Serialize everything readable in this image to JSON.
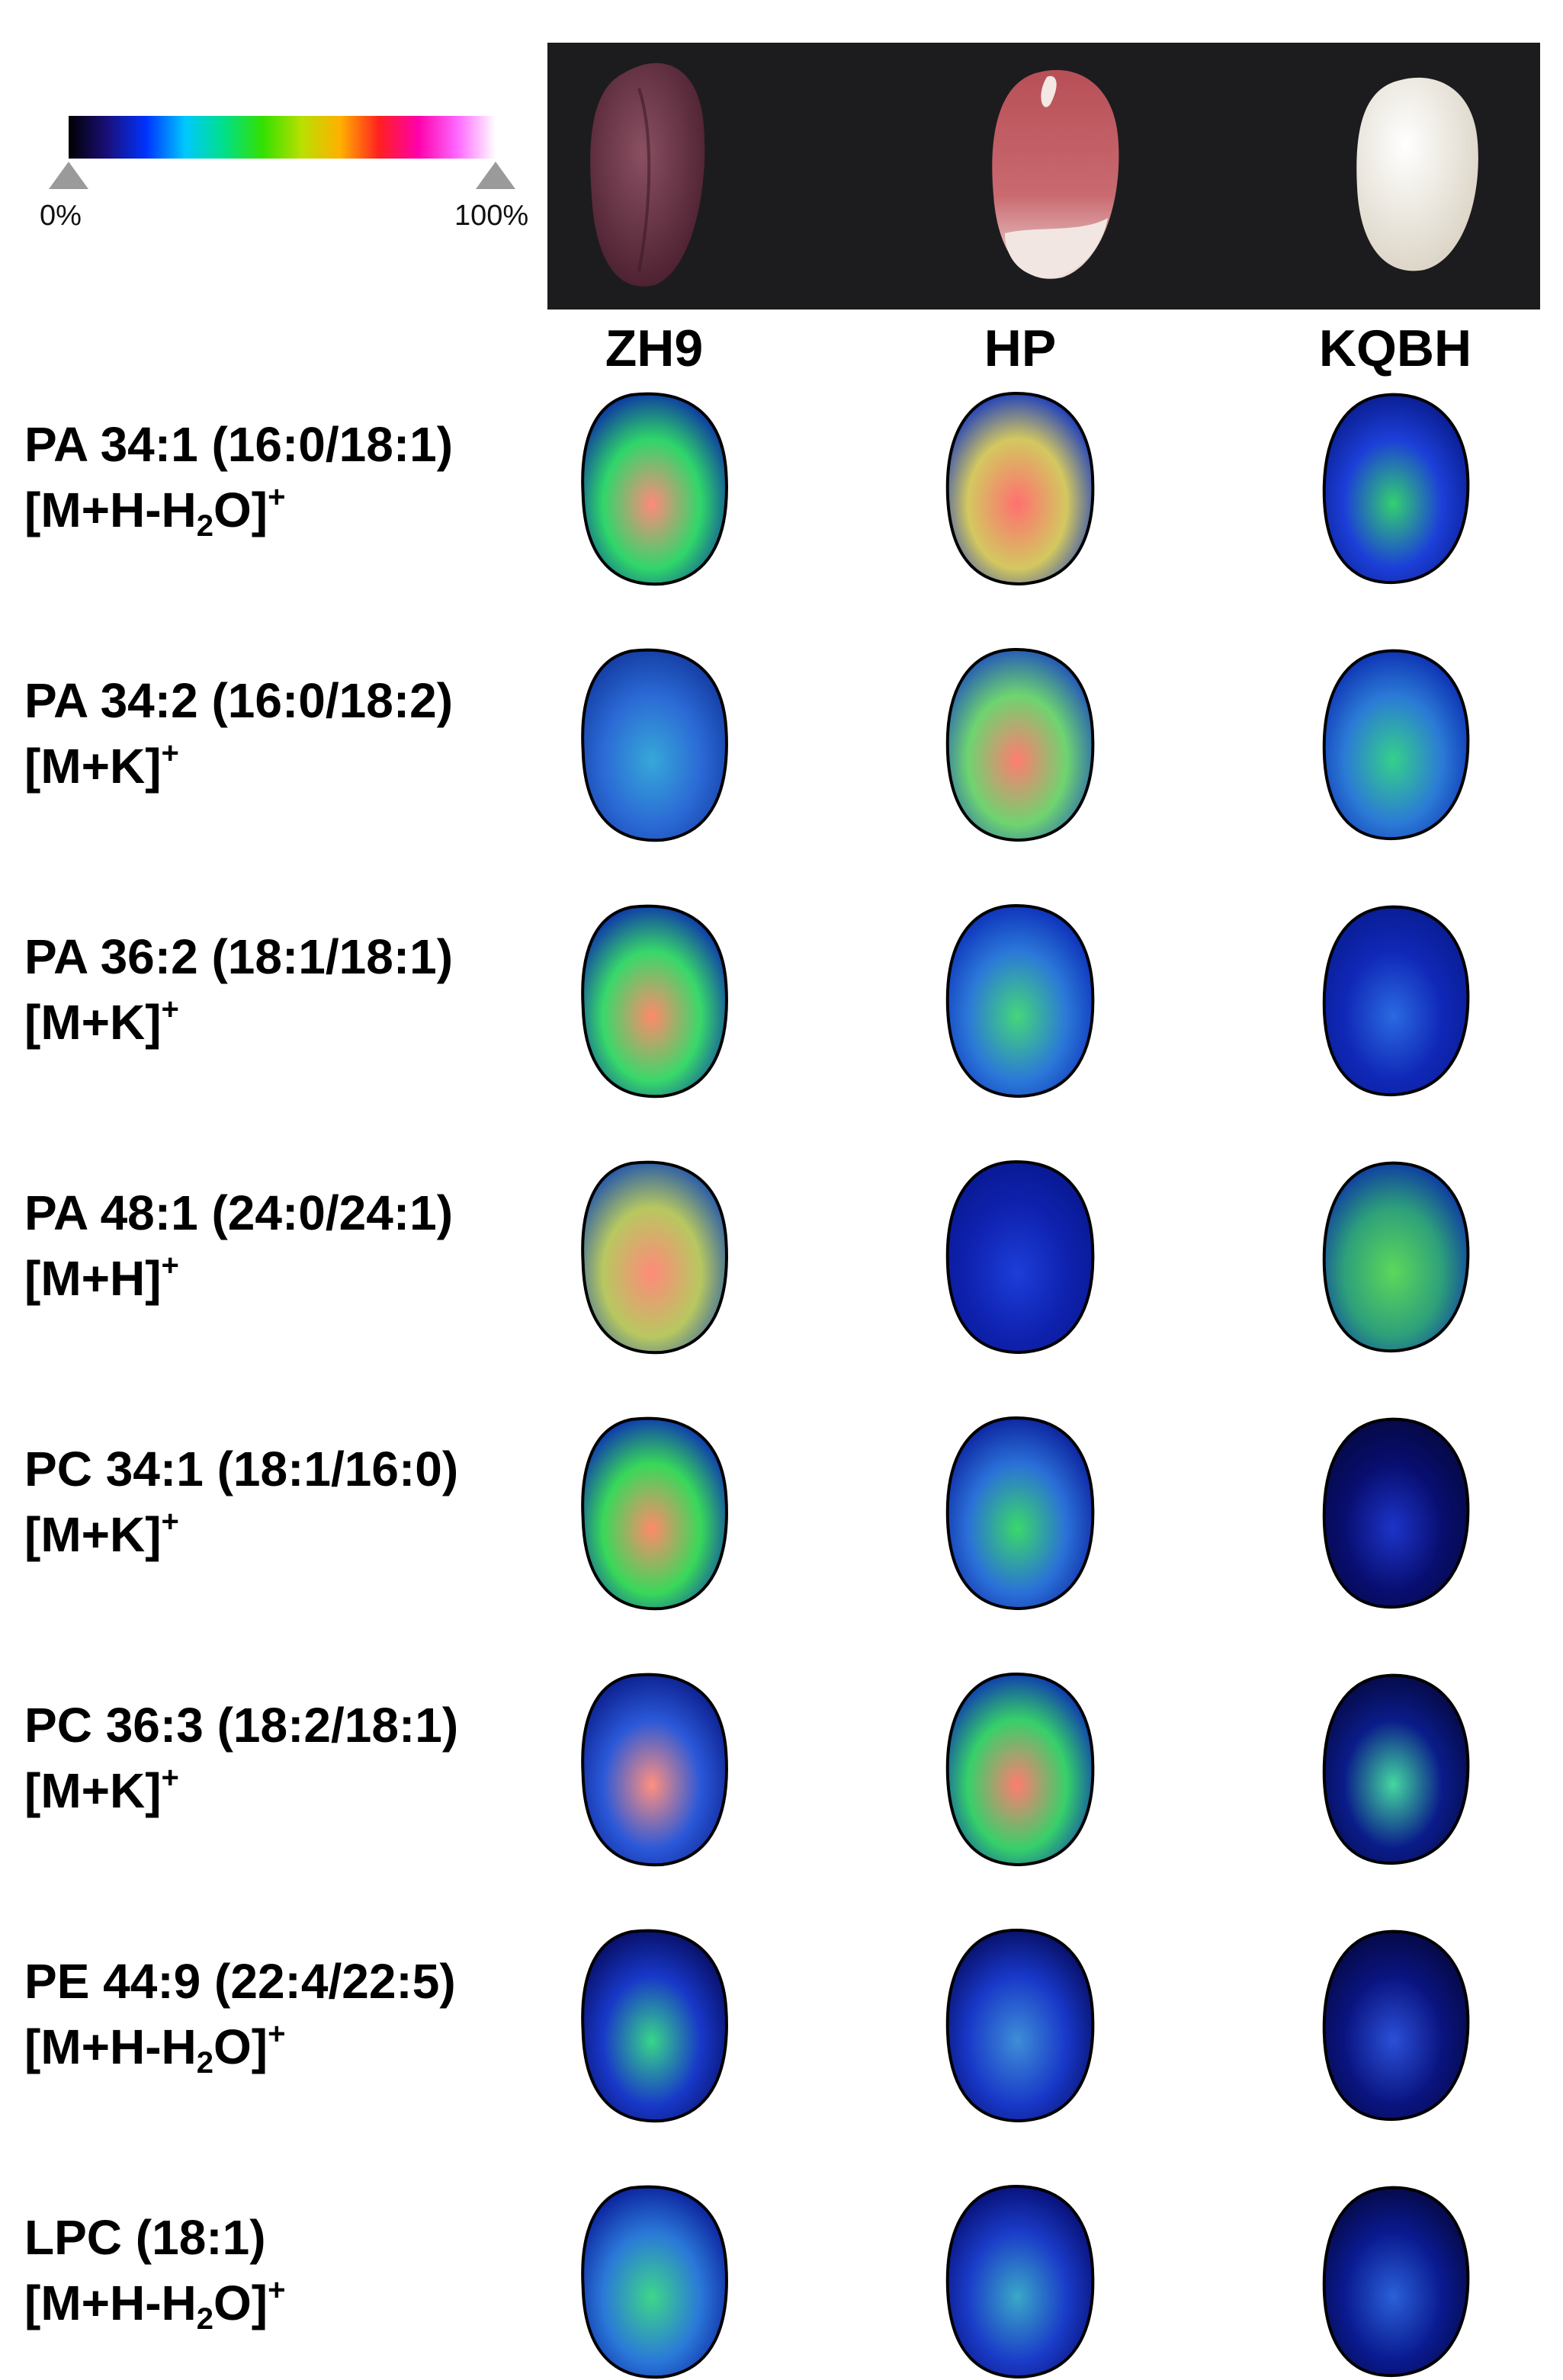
{
  "scale": {
    "min_label": "0%",
    "max_label": "100%",
    "gradient": [
      "#000000",
      "#1a0f7a",
      "#0033ff",
      "#00c8ff",
      "#00e08a",
      "#33e000",
      "#b8e000",
      "#ffb000",
      "#ff2020",
      "#ff00aa",
      "#ff66ff",
      "#ffffff"
    ]
  },
  "photo_seeds": [
    {
      "name": "ZH9",
      "coat": "#6e3346",
      "highlight": "#8a5062",
      "bg": "#1c1c1e"
    },
    {
      "name": "HP",
      "coat": "#c05a60",
      "highlight": "#f2e4e0"
    },
    {
      "name": "KQBH",
      "coat": "#f1ede4",
      "highlight": "#ffffff"
    }
  ],
  "columns": [
    "ZH9",
    "HP",
    "KQBH"
  ],
  "rows": [
    {
      "name": "PA 34:1 (16:0/18:1)",
      "adduct_pre": "[M+H-H",
      "adduct_sub": "2",
      "adduct_post": "O]",
      "adduct_sup": "+",
      "intensity": [
        {
          "c1": "#ff8a7a",
          "c2": "#2fd66a",
          "edge": "#0a2aa8"
        },
        {
          "c1": "#ff7070",
          "c2": "#d3c860",
          "edge": "#0a30c8"
        },
        {
          "c1": "#33d070",
          "c2": "#1c3fd8",
          "edge": "#081a8a"
        }
      ]
    },
    {
      "name": "PA 34:2 (16:0/18:2)",
      "adduct_pre": "[M+K]",
      "adduct_sub": "",
      "adduct_post": "",
      "adduct_sup": "+",
      "intensity": [
        {
          "c1": "#36a8d8",
          "c2": "#2b6ad6",
          "edge": "#123aa0"
        },
        {
          "c1": "#ff7c70",
          "c2": "#6ed470",
          "edge": "#1b4ac0"
        },
        {
          "c1": "#35d08a",
          "c2": "#2b7ad6",
          "edge": "#0a2ab0"
        }
      ]
    },
    {
      "name": "PA 36:2 (18:1/18:1)",
      "adduct_pre": "[M+K]",
      "adduct_sub": "",
      "adduct_post": "",
      "adduct_sup": "+",
      "intensity": [
        {
          "c1": "#ff8a6a",
          "c2": "#38d86a",
          "edge": "#0a2ab0"
        },
        {
          "c1": "#44d67a",
          "c2": "#2b78d8",
          "edge": "#0a2ab8"
        },
        {
          "c1": "#2a6ae0",
          "c2": "#1028b8",
          "edge": "#081c90"
        }
      ]
    },
    {
      "name": "PA 48:1 (24:0/24:1)",
      "adduct_pre": "[M+H]",
      "adduct_sub": "",
      "adduct_post": "",
      "adduct_sup": "+",
      "intensity": [
        {
          "c1": "#ff8a7a",
          "c2": "#b7c860",
          "edge": "#1a50b0"
        },
        {
          "c1": "#1c3ed8",
          "c2": "#0f22b0",
          "edge": "#081890"
        },
        {
          "c1": "#5cd85a",
          "c2": "#2ea07a",
          "edge": "#0a30a8"
        }
      ]
    },
    {
      "name": "PC 34:1 (18:1/16:0)",
      "adduct_pre": "[M+K]",
      "adduct_sub": "",
      "adduct_post": "",
      "adduct_sup": "+",
      "intensity": [
        {
          "c1": "#ff8a6a",
          "c2": "#38d85a",
          "edge": "#0a2ab8"
        },
        {
          "c1": "#3ad86a",
          "c2": "#2a70d8",
          "edge": "#0a1c9a"
        },
        {
          "c1": "#1c34c8",
          "c2": "#080e70",
          "edge": "#050840"
        }
      ]
    },
    {
      "name": "PC 36:3 (18:2/18:1)",
      "adduct_pre": "[M+K]",
      "adduct_sub": "",
      "adduct_post": "",
      "adduct_sup": "+",
      "intensity": [
        {
          "c1": "#ff9080",
          "c2": "#2a58d8",
          "edge": "#0a1c8a"
        },
        {
          "c1": "#ff7c70",
          "c2": "#36d06a",
          "edge": "#0a2ab8"
        },
        {
          "c1": "#44d8a0",
          "c2": "#0a1c8a",
          "edge": "#050840"
        }
      ]
    },
    {
      "name": "PE 44:9 (22:4/22:5)",
      "adduct_pre": "[M+H-H",
      "adduct_sub": "2",
      "adduct_post": "O]",
      "adduct_sup": "+",
      "intensity": [
        {
          "c1": "#38d68a",
          "c2": "#1838c8",
          "edge": "#060c60"
        },
        {
          "c1": "#3e8ed8",
          "c2": "#1838c8",
          "edge": "#060c60"
        },
        {
          "c1": "#2a50d8",
          "c2": "#0a1480",
          "edge": "#050840"
        }
      ]
    },
    {
      "name": "LPC (18:1)",
      "adduct_pre": "[M+H-H",
      "adduct_sub": "2",
      "adduct_post": "O]",
      "adduct_sup": "+",
      "intensity": [
        {
          "c1": "#3ed68a",
          "c2": "#2a78d8",
          "edge": "#0a1c9a"
        },
        {
          "c1": "#3aa8c8",
          "c2": "#1a3cc8",
          "edge": "#060c70"
        },
        {
          "c1": "#2a60d8",
          "c2": "#0a1a90",
          "edge": "#050840"
        }
      ]
    }
  ]
}
